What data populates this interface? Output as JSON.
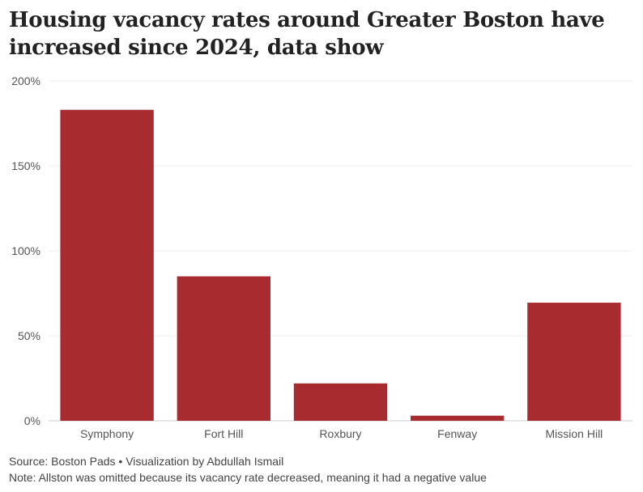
{
  "chart_data": {
    "type": "bar",
    "title": "Housing vacancy rates around Greater Boston have increased since 2024, data show",
    "categories": [
      "Symphony",
      "Fort Hill",
      "Roxbury",
      "Fenway",
      "Mission Hill"
    ],
    "values": [
      183,
      85,
      22,
      3,
      69.5
    ],
    "y_ticks": [
      "0%",
      "50%",
      "100%",
      "150%",
      "200%"
    ],
    "ylim": [
      0,
      200
    ],
    "grid": true,
    "bar_color": "#a82c2f",
    "xlabel": "",
    "ylabel": ""
  },
  "footer": {
    "source": "Source: Boston Pads • Visualization by Abdullah Ismail",
    "note": "Note: Allston was omitted because its vacancy rate decreased, meaning it had a negative value"
  }
}
